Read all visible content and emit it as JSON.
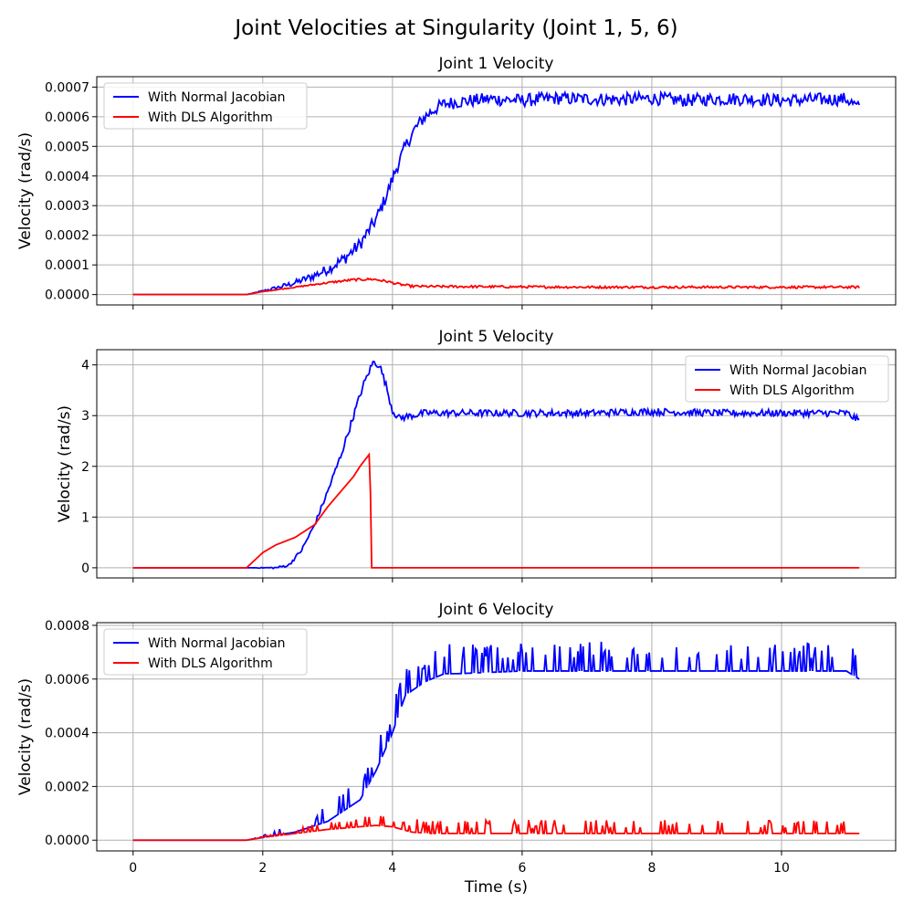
{
  "figure": {
    "title": "Joint Velocities at Singularity (Joint 1, 5, 6)"
  },
  "colors": {
    "normal": "#0000ff",
    "dls": "#ff0000",
    "grid": "#b0b0b0"
  },
  "chart_data": [
    {
      "type": "line",
      "title": "Joint 1 Velocity",
      "xlabel": "",
      "ylabel": "Velocity (rad/s)",
      "xlim": [
        -0.56,
        11.76
      ],
      "ylim": [
        -3.5e-05,
        0.000735
      ],
      "xticks": [
        0,
        2,
        4,
        6,
        8,
        10
      ],
      "xtick_labels_visible": false,
      "yticks": [
        0.0,
        0.0001,
        0.0002,
        0.0003,
        0.0004,
        0.0005,
        0.0006,
        0.0007
      ],
      "ytick_labels": [
        "0.0000",
        "0.0001",
        "0.0002",
        "0.0003",
        "0.0004",
        "0.0005",
        "0.0006",
        "0.0007"
      ],
      "grid": true,
      "legend": "upper-left",
      "series": [
        {
          "name": "With Normal Jacobian",
          "x": [
            0,
            1.75,
            2.0,
            2.25,
            2.5,
            2.75,
            3.0,
            3.25,
            3.5,
            3.75,
            3.9,
            4.05,
            4.2,
            4.35,
            4.5,
            4.65,
            4.8,
            5.0,
            5.5,
            6.0,
            6.5,
            7.0,
            7.5,
            8.0,
            8.5,
            9.0,
            9.5,
            10.0,
            10.5,
            11.0,
            11.2
          ],
          "y": [
            0.0,
            0.0,
            1.2e-05,
            2.5e-05,
            4e-05,
            6e-05,
            8.5e-05,
            0.00012,
            0.00017,
            0.000255,
            0.00033,
            0.00042,
            0.0005,
            0.00056,
            0.0006,
            0.000625,
            0.000643,
            0.00065,
            0.00066,
            0.000655,
            0.000662,
            0.00066,
            0.000658,
            0.000662,
            0.000655,
            0.00066,
            0.00066,
            0.000655,
            0.000658,
            0.00066,
            0.000628
          ],
          "noise": 2.2e-05
        },
        {
          "name": "With DLS Algorithm",
          "x": [
            0,
            1.75,
            2.0,
            2.5,
            3.0,
            3.4,
            3.7,
            3.9,
            4.1,
            4.3,
            4.6,
            5.0,
            6.0,
            7.0,
            8.0,
            9.0,
            10.0,
            11.2
          ],
          "y": [
            0.0,
            0.0,
            1e-05,
            2.5e-05,
            4e-05,
            5e-05,
            5.2e-05,
            4.5e-05,
            3.5e-05,
            2.8e-05,
            2.7e-05,
            2.7e-05,
            2.6e-05,
            2.5e-05,
            2.5e-05,
            2.5e-05,
            2.5e-05,
            2.5e-05
          ],
          "noise": 4e-06
        }
      ]
    },
    {
      "type": "line",
      "title": "Joint 5 Velocity",
      "xlabel": "",
      "ylabel": "Velocity (rad/s)",
      "xlim": [
        -0.56,
        11.76
      ],
      "ylim": [
        -0.2,
        4.3
      ],
      "xticks": [
        0,
        2,
        4,
        6,
        8,
        10
      ],
      "xtick_labels_visible": false,
      "yticks": [
        0,
        1,
        2,
        3,
        4
      ],
      "ytick_labels": [
        "0",
        "1",
        "2",
        "3",
        "4"
      ],
      "grid": true,
      "legend": "upper-right",
      "series": [
        {
          "name": "With Normal Jacobian",
          "x": [
            0,
            1.75,
            2.2,
            2.4,
            2.6,
            2.8,
            3.0,
            3.2,
            3.4,
            3.55,
            3.7,
            3.8,
            3.9,
            4.0,
            4.1,
            4.5,
            5.0,
            6.0,
            7.0,
            8.0,
            9.0,
            10.0,
            11.0,
            11.2
          ],
          "y": [
            0.0,
            0.0,
            0.0,
            0.05,
            0.35,
            0.85,
            1.5,
            2.2,
            3.0,
            3.6,
            4.05,
            4.0,
            3.6,
            3.1,
            2.95,
            3.05,
            3.05,
            3.05,
            3.05,
            3.08,
            3.05,
            3.05,
            3.05,
            2.9
          ],
          "noise": 0.07
        },
        {
          "name": "With DLS Algorithm",
          "x": [
            0,
            1.75,
            2.0,
            2.2,
            2.5,
            2.8,
            3.0,
            3.2,
            3.4,
            3.5,
            3.65,
            3.68,
            11.2
          ],
          "y": [
            0.0,
            0.0,
            0.3,
            0.45,
            0.6,
            0.85,
            1.2,
            1.5,
            1.8,
            2.0,
            2.25,
            0.0,
            0.0
          ],
          "noise": 0.0
        }
      ]
    },
    {
      "type": "line",
      "title": "Joint 6 Velocity",
      "xlabel": "Time (s)",
      "ylabel": "Velocity (rad/s)",
      "xlim": [
        -0.56,
        11.76
      ],
      "ylim": [
        -4e-05,
        0.00081
      ],
      "xticks": [
        0,
        2,
        4,
        6,
        8,
        10
      ],
      "xtick_labels_visible": true,
      "xtick_labels": [
        "0",
        "2",
        "4",
        "6",
        "8",
        "10"
      ],
      "yticks": [
        0.0,
        0.0002,
        0.0004,
        0.0006,
        0.0008
      ],
      "ytick_labels": [
        "0.0000",
        "0.0002",
        "0.0004",
        "0.0006",
        "0.0008"
      ],
      "grid": true,
      "legend": "upper-left",
      "series": [
        {
          "name": "With Normal Jacobian",
          "x": [
            0,
            1.75,
            2.0,
            2.5,
            3.0,
            3.5,
            3.75,
            4.0,
            4.2,
            4.5,
            4.8,
            5.0,
            6.0,
            7.0,
            8.0,
            9.0,
            10.0,
            11.0,
            11.2
          ],
          "y": [
            0.0,
            0.0,
            1e-05,
            3e-05,
            7e-05,
            0.00015,
            0.00026,
            0.0004,
            0.00054,
            0.00059,
            0.00062,
            0.00062,
            0.00063,
            0.00063,
            0.00063,
            0.00063,
            0.00063,
            0.00063,
            0.0006
          ],
          "spikes": 0.00011
        },
        {
          "name": "With DLS Algorithm",
          "x": [
            0,
            1.75,
            2.0,
            2.5,
            3.0,
            3.5,
            3.75,
            4.0,
            4.3,
            4.6,
            5.0,
            6.0,
            8.0,
            10.0,
            11.2
          ],
          "y": [
            0.0,
            0.0,
            1e-05,
            2.5e-05,
            4e-05,
            5e-05,
            5.5e-05,
            5e-05,
            3e-05,
            2.5e-05,
            2.5e-05,
            2.5e-05,
            2.5e-05,
            2.5e-05,
            2.5e-05
          ],
          "spikes": 5e-05
        }
      ]
    }
  ]
}
